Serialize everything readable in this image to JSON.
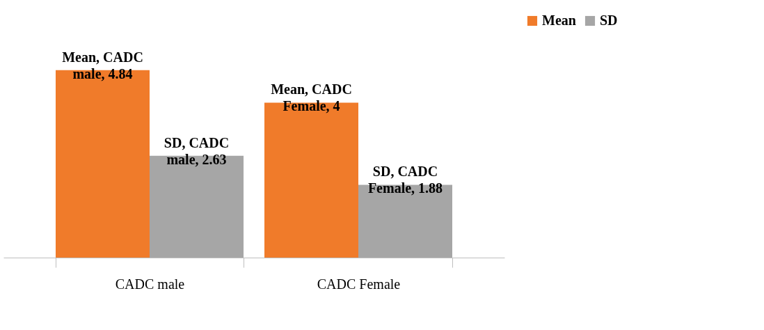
{
  "chart_data": {
    "type": "bar",
    "categories": [
      "CADC male",
      "CADC Female"
    ],
    "series": [
      {
        "name": "Mean",
        "color": "#f07b2a",
        "values": [
          4.84,
          4
        ],
        "value_labels": [
          "Mean, CADC male, 4.84",
          "Mean, CADC Female, 4"
        ]
      },
      {
        "name": "SD",
        "color": "#a6a6a6",
        "values": [
          2.63,
          1.88
        ],
        "value_labels": [
          "SD, CADC male, 2.63",
          "SD, CADC Female, 1.88"
        ]
      }
    ],
    "legend": "right",
    "grid": false
  }
}
